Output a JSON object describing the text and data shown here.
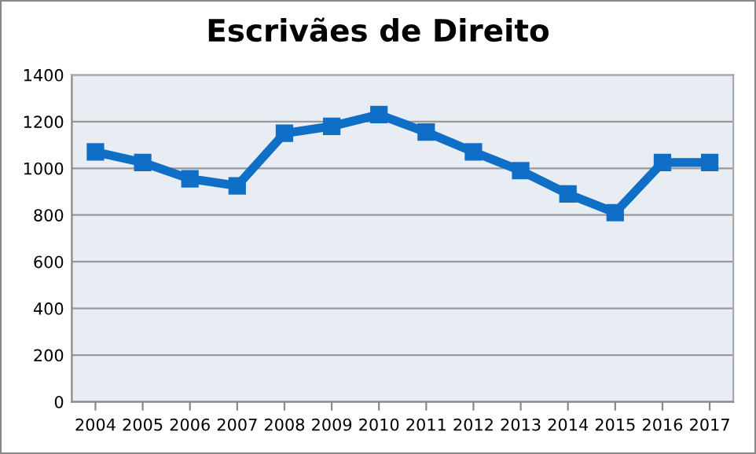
{
  "chart_data": {
    "type": "line",
    "title": "Escrivães de Direito",
    "categories": [
      "2004",
      "2005",
      "2006",
      "2007",
      "2008",
      "2009",
      "2010",
      "2011",
      "2012",
      "2013",
      "2014",
      "2015",
      "2016",
      "2017"
    ],
    "series": [
      {
        "color": "#0f6fc6",
        "values": [
          1070,
          1025,
          955,
          925,
          1150,
          1180,
          1230,
          1155,
          1070,
          990,
          890,
          810,
          1025,
          1025
        ]
      }
    ],
    "ylim": [
      0,
      1400
    ],
    "yticks": [
      0,
      200,
      400,
      600,
      800,
      1000,
      1200,
      1400
    ],
    "grid": "y",
    "marker": "square",
    "line_style": "solid",
    "legend": false
  }
}
